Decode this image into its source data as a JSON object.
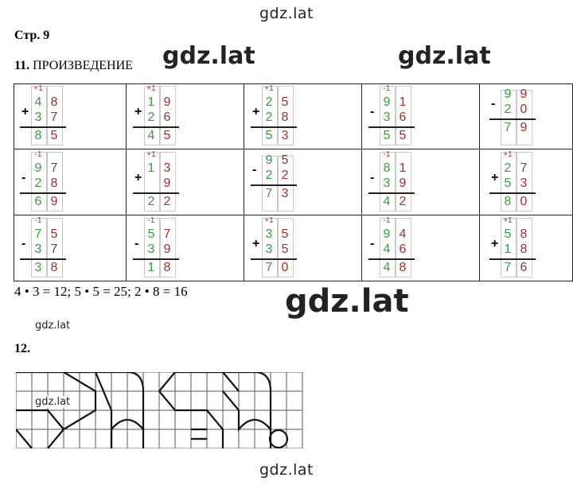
{
  "watermarks": {
    "top": "gdz.lat",
    "inline_1": "gdz.lat",
    "inline_2": "gdz.lat",
    "center_big": "gdz.lat",
    "small_1": "gdz.lat",
    "small_2": "gdz.lat",
    "bottom": "gdz.lat"
  },
  "page_label": "Стр. 9",
  "task11": {
    "number": "11.",
    "title": "ПРОИЗВЕДЕНИЕ"
  },
  "task11_cells": [
    {
      "op": "+",
      "carry": "+1",
      "a": [
        "4",
        "8"
      ],
      "b": [
        "3",
        "7"
      ],
      "res": [
        "8",
        "5"
      ]
    },
    {
      "op": "+",
      "carry": "+1",
      "a": [
        "1",
        "9"
      ],
      "b": [
        "2",
        "6"
      ],
      "res": [
        "4",
        "5"
      ]
    },
    {
      "op": "+",
      "carry": "+1",
      "a": [
        "2",
        "5"
      ],
      "b": [
        "2",
        "8"
      ],
      "res": [
        "5",
        "3"
      ]
    },
    {
      "op": "-",
      "carry": "-1",
      "a": [
        "9",
        "1"
      ],
      "b": [
        "3",
        "6"
      ],
      "res": [
        "5",
        "5"
      ]
    },
    {
      "op": "-",
      "carry": "",
      "a": [
        "9",
        "9"
      ],
      "b": [
        "2",
        "0"
      ],
      "res": [
        "7",
        "9"
      ]
    },
    {
      "op": "-",
      "carry": "-1",
      "a": [
        "9",
        "7"
      ],
      "b": [
        "2",
        "8"
      ],
      "res": [
        "6",
        "9"
      ]
    },
    {
      "op": "+",
      "carry": "+1",
      "a": [
        "1",
        "3"
      ],
      "b": [
        "",
        "9"
      ],
      "res": [
        "2",
        "2"
      ]
    },
    {
      "op": "-",
      "carry": "",
      "a": [
        "9",
        "5"
      ],
      "b": [
        "2",
        "2"
      ],
      "res": [
        "7",
        "3"
      ]
    },
    {
      "op": "-",
      "carry": "-1",
      "a": [
        "8",
        "1"
      ],
      "b": [
        "3",
        "9"
      ],
      "res": [
        "4",
        "2"
      ]
    },
    {
      "op": "+",
      "carry": "+1",
      "a": [
        "2",
        "7"
      ],
      "b": [
        "5",
        "3"
      ],
      "res": [
        "8",
        "0"
      ]
    },
    {
      "op": "-",
      "carry": "-1",
      "a": [
        "7",
        "5"
      ],
      "b": [
        "3",
        "7"
      ],
      "res": [
        "3",
        "8"
      ]
    },
    {
      "op": "-",
      "carry": "-1",
      "a": [
        "5",
        "7"
      ],
      "b": [
        "3",
        "9"
      ],
      "res": [
        "1",
        "8"
      ]
    },
    {
      "op": "+",
      "carry": "+1",
      "a": [
        "3",
        "5"
      ],
      "b": [
        "3",
        "5"
      ],
      "res": [
        "7",
        "0"
      ]
    },
    {
      "op": "-",
      "carry": "-1",
      "a": [
        "9",
        "4"
      ],
      "b": [
        "4",
        "6"
      ],
      "res": [
        "4",
        "8"
      ]
    },
    {
      "op": "+",
      "carry": "+1",
      "a": [
        "5",
        "8"
      ],
      "b": [
        "1",
        "8"
      ],
      "res": [
        "7",
        "6"
      ]
    }
  ],
  "task11_equation": "4 • 3 = 12; 5 • 5 = 25; 2 • 8 = 16",
  "task12": {
    "number": "12."
  }
}
